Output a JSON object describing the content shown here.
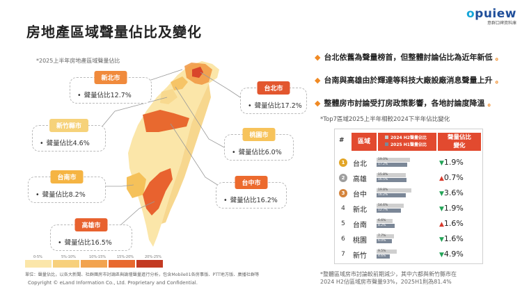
{
  "header": {
    "title": "房地產區域聲量佔比及變化",
    "logo_text_o": "o",
    "logo_text_rest": "puiew",
    "logo_sub": "意群口碑資料庫"
  },
  "map": {
    "caption": "*2025上半年房地產區域聲量佔比",
    "callouts": [
      {
        "city": "新北市",
        "label": "聲量佔比12.7%",
        "color": "#f08a3c"
      },
      {
        "city": "台北市",
        "label": "聲量佔比17.2%",
        "color": "#e2562e"
      },
      {
        "city": "新竹縣市",
        "label": "聲量佔比4.6%",
        "color": "#f6d27a"
      },
      {
        "city": "桃園市",
        "label": "聲量佔比6.0%",
        "color": "#f7c35b"
      },
      {
        "city": "台南市",
        "label": "聲量佔比8.2%",
        "color": "#f5b443"
      },
      {
        "city": "台中市",
        "label": "聲量佔比16.2%",
        "color": "#ec6a2e"
      },
      {
        "city": "高雄市",
        "label": "聲量佔比16.5%",
        "color": "#e8622f"
      }
    ],
    "legend": [
      {
        "label": "0-5%",
        "color": "#fbe6a9"
      },
      {
        "label": "5%-10%",
        "color": "#f7d07c"
      },
      {
        "label": "10%-15%",
        "color": "#f2a34f"
      },
      {
        "label": "15%-20%",
        "color": "#e8692f"
      },
      {
        "label": "20%-25%",
        "color": "#c33a22"
      }
    ],
    "source": "單位：聲量佔比，以各大新聞、社群團房市討論區與論壇聲量進行分析，包含Mobile01各房事版、PTT地方版、廣播社群等",
    "copyright": "Copyright © eLand Information Co., Ltd. Proprietary and Confidential."
  },
  "bullets": [
    "台北依舊為聲量榜首，但整體討論佔比為近年新低",
    "台南與高雄由於輝達等科技大廠設廠消息聲量上升",
    "整體房市討論受打房政策影響，各地討論度降溫"
  ],
  "table": {
    "title": "*Top7區域2025上半年相較2024下半年佔比變化",
    "headers": {
      "num": "#",
      "region": "區域",
      "legend_h2": "2024 H2聲量佔比",
      "legend_h1": "2025 H1聲量佔比",
      "change_line1": "聲量佔比",
      "change_line2": "變化"
    },
    "rows": [
      {
        "rank": "1",
        "medal": "gold",
        "region": "台北",
        "h2": 19.0,
        "h1": 17.2,
        "h2_label": "19.0%",
        "h1_label": "17.2%",
        "dir": "down",
        "change": "1.9%"
      },
      {
        "rank": "2",
        "medal": "silver",
        "region": "高雄",
        "h2": 15.8,
        "h1": 16.5,
        "h2_label": "15.8%",
        "h1_label": "16.5%",
        "dir": "up",
        "change": "0.7%"
      },
      {
        "rank": "3",
        "medal": "bronze",
        "region": "台中",
        "h2": 19.8,
        "h1": 16.2,
        "h2_label": "19.8%",
        "h1_label": "16.2%",
        "dir": "down",
        "change": "3.6%"
      },
      {
        "rank": "4",
        "medal": "",
        "region": "新北",
        "h2": 14.6,
        "h1": 12.7,
        "h2_label": "14.6%",
        "h1_label": "12.7%",
        "dir": "down",
        "change": "1.9%"
      },
      {
        "rank": "5",
        "medal": "",
        "region": "台南",
        "h2": 6.6,
        "h1": 8.2,
        "h2_label": "6.6%",
        "h1_label": "8.2%",
        "dir": "up",
        "change": "1.6%"
      },
      {
        "rank": "6",
        "medal": "",
        "region": "桃園",
        "h2": 7.7,
        "h1": 6.0,
        "h2_label": "7.7%",
        "h1_label": "6.0%",
        "dir": "down",
        "change": "1.6%"
      },
      {
        "rank": "7",
        "medal": "",
        "region": "新竹",
        "h2": 9.5,
        "h1": 4.6,
        "h2_label": "9.5%",
        "h1_label": "4.6%",
        "dir": "down",
        "change": "4.9%"
      }
    ],
    "footnote_line1": "*整體區域房市討論較前期減少，其中六都與新竹縣市在",
    "footnote_line2": "2024 H2佔區域房市聲量93%，2025H1則為81.4%"
  },
  "colors": {
    "accent": "#e24a2f",
    "bullet_dot": "#f08a24",
    "up": "#d83a2c",
    "down": "#22a356",
    "gold": "#e2a526",
    "silver": "#9e9e9e",
    "bronze": "#d4843c"
  },
  "icons": {
    "bullet": "diamond-dot-icon",
    "arrow_up": "triangle-up-icon",
    "arrow_down": "triangle-down-icon",
    "medal": "medal-icon"
  }
}
